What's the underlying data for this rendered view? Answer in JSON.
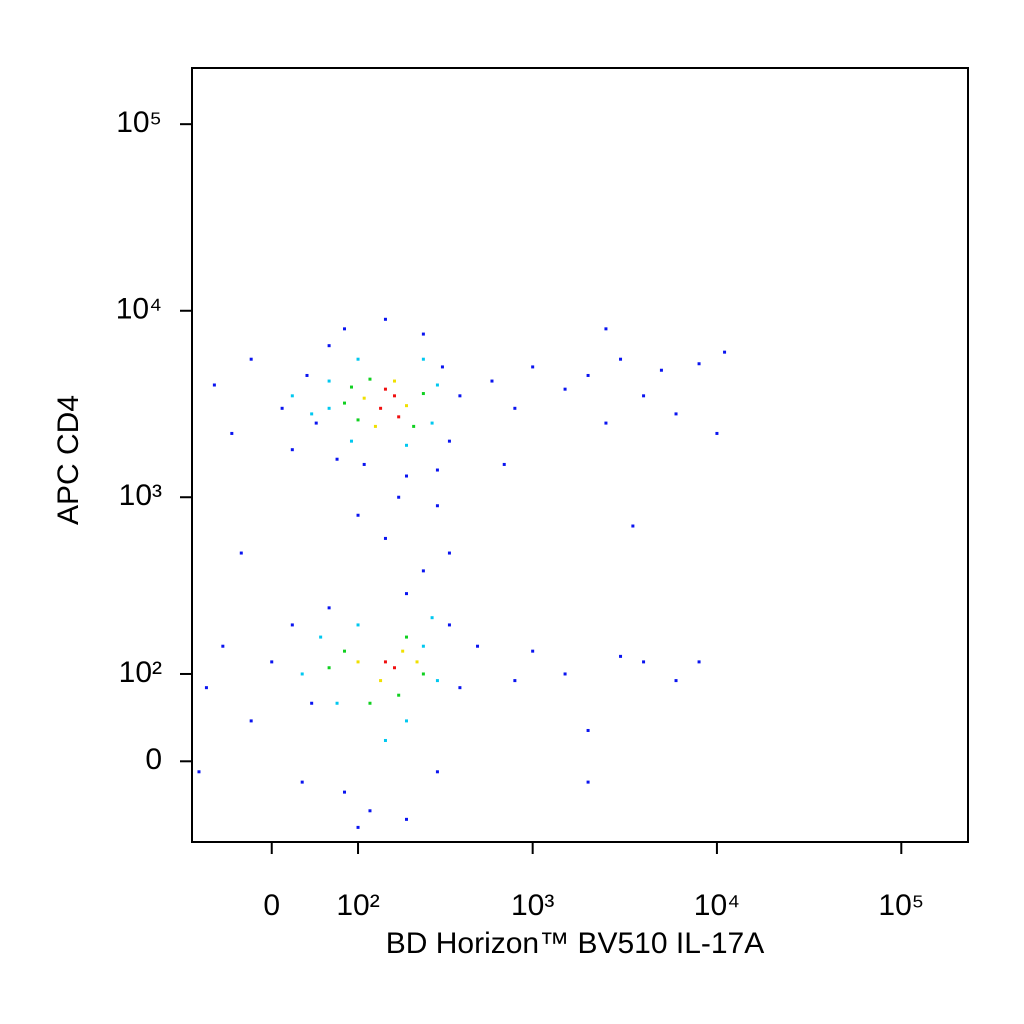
{
  "chart_data": {
    "type": "scatter",
    "x_label": "BD Horizon™ BV510 IL-17A",
    "y_label": "APC CD4",
    "xscale": "biexponential",
    "yscale": "biexponential",
    "xlim": [
      -90,
      230000
    ],
    "ylim": [
      -90,
      200000
    ],
    "xticks": [
      0,
      {
        "value": 100,
        "label": "10²"
      },
      {
        "value": 1000,
        "label": "10³"
      },
      {
        "value": 10000,
        "label": "10⁴"
      },
      {
        "value": 100000,
        "label": "10⁵"
      }
    ],
    "yticks": [
      0,
      {
        "value": 100,
        "label": "10²"
      },
      {
        "value": 1000,
        "label": "10³"
      },
      {
        "value": 10000,
        "label": "10⁴"
      },
      {
        "value": 100000,
        "label": "10⁵"
      }
    ],
    "series": [
      {
        "color": "#0a14f0",
        "x": [
          -60,
          -40,
          -20,
          10,
          20,
          35,
          45,
          60,
          70,
          80,
          250,
          320,
          350,
          300,
          200,
          110,
          150,
          400,
          600,
          800,
          1000,
          1500,
          2000,
          2500,
          3000,
          4000,
          5000,
          6000,
          8000,
          10000,
          11000,
          700,
          2500,
          3500,
          150,
          250,
          100,
          300,
          200,
          180,
          350,
          -30,
          -70,
          -50,
          -20,
          0,
          20,
          30,
          40,
          60,
          80,
          300,
          350,
          400,
          200,
          120,
          500,
          800,
          1000,
          1500,
          2000,
          3000,
          4000,
          6000,
          8000,
          2000,
          -80,
          100
        ],
        "y": [
          4000,
          2200,
          5500,
          3000,
          1800,
          4500,
          2500,
          6500,
          1600,
          8000,
          7500,
          5000,
          2000,
          1400,
          1300,
          1500,
          9000,
          3500,
          4200,
          3000,
          5000,
          3800,
          4500,
          2500,
          5500,
          3500,
          4800,
          2800,
          5200,
          2200,
          6000,
          1500,
          8000,
          700,
          600,
          400,
          800,
          900,
          300,
          1000,
          500,
          500,
          80,
          150,
          40,
          120,
          200,
          -20,
          60,
          250,
          -30,
          -10,
          200,
          80,
          -60,
          -50,
          150,
          90,
          140,
          100,
          30,
          130,
          120,
          90,
          120,
          -20,
          -10,
          -70
        ]
      },
      {
        "color": "#00c8f0",
        "x": [
          20,
          40,
          60,
          90,
          280,
          300,
          250,
          100,
          200,
          60,
          30,
          50,
          70,
          250,
          300,
          150,
          100,
          200,
          280
        ],
        "y": [
          3500,
          2800,
          4200,
          2000,
          2500,
          4000,
          5500,
          5500,
          1900,
          3000,
          100,
          170,
          60,
          150,
          90,
          20,
          200,
          40,
          220
        ]
      },
      {
        "color": "#10d020",
        "x": [
          80,
          100,
          120,
          250,
          220,
          90,
          60,
          80,
          200,
          250,
          120,
          180
        ],
        "y": [
          3200,
          2600,
          4300,
          3600,
          2400,
          3900,
          110,
          140,
          170,
          100,
          60,
          70
        ]
      },
      {
        "color": "#f0e000",
        "x": [
          110,
          200,
          170,
          130,
          100,
          190,
          140,
          230
        ],
        "y": [
          3400,
          3100,
          4200,
          2400,
          120,
          140,
          90,
          120
        ]
      },
      {
        "color": "#f01010",
        "x": [
          140,
          170,
          180,
          150,
          150,
          170
        ],
        "y": [
          3000,
          3500,
          2700,
          3800,
          120,
          110
        ]
      }
    ]
  }
}
